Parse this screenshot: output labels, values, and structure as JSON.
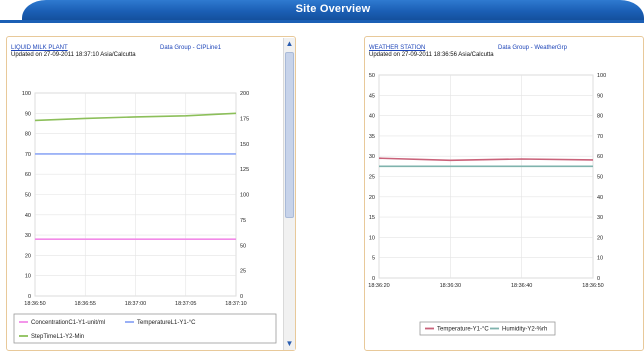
{
  "page": {
    "title": "Site Overview"
  },
  "panels": [
    {
      "link": "LIQUID MILK PLANT",
      "group": "Data Group - CIPLine1",
      "updated": "Updated on 27-09-2011 18:37:10  Asia/Calcutta"
    },
    {
      "link": "WEATHER STATION",
      "group": "Data Group - WeatherGrp",
      "updated": "Updated on 27-09-2011 18:36:56  Asia/Calcutta"
    }
  ],
  "chart_data": [
    {
      "type": "line",
      "x": [
        "18:36:50",
        "18:36:55",
        "18:37:00",
        "18:37:05",
        "18:37:10"
      ],
      "ylim": [
        0,
        100
      ],
      "y2lim": [
        0,
        200
      ],
      "yticks": [
        0,
        10,
        20,
        30,
        40,
        50,
        60,
        70,
        80,
        90,
        100
      ],
      "y2ticks": [
        0,
        25,
        50,
        75,
        100,
        125,
        150,
        175,
        200
      ],
      "series": [
        {
          "name": "ConcentrationC1-Y1-unit/ml",
          "axis": "y1",
          "color": "#f28ae8",
          "values": [
            28,
            28,
            28,
            28,
            28
          ]
        },
        {
          "name": "TemperatureL1-Y1-°C",
          "axis": "y1",
          "color": "#8fa8f5",
          "values": [
            70,
            70,
            70,
            70,
            70
          ]
        },
        {
          "name": "StepTimeL1-Y2-Min",
          "axis": "y2",
          "color": "#8cbf5a",
          "values": [
            173,
            175,
            176.5,
            177.5,
            180
          ]
        }
      ],
      "legend": "bottom",
      "grid": true
    },
    {
      "type": "line",
      "x": [
        "18:36:20",
        "18:36:30",
        "18:36:40",
        "18:36:50"
      ],
      "ylim": [
        0,
        50
      ],
      "y2lim": [
        0,
        100
      ],
      "yticks": [
        0,
        5,
        10,
        15,
        20,
        25,
        30,
        35,
        40,
        45,
        50
      ],
      "y2ticks": [
        0,
        10,
        20,
        30,
        40,
        50,
        60,
        70,
        80,
        90,
        100
      ],
      "series": [
        {
          "name": "Temperature-Y1-°C",
          "axis": "y1",
          "color": "#c9627a",
          "values": [
            29.5,
            29,
            29.3,
            29.1
          ]
        },
        {
          "name": "Humidity-Y2-%rh",
          "axis": "y2",
          "color": "#7fb3ad",
          "values": [
            55,
            55,
            55,
            55
          ]
        }
      ],
      "legend": "bottom",
      "grid": true
    }
  ]
}
